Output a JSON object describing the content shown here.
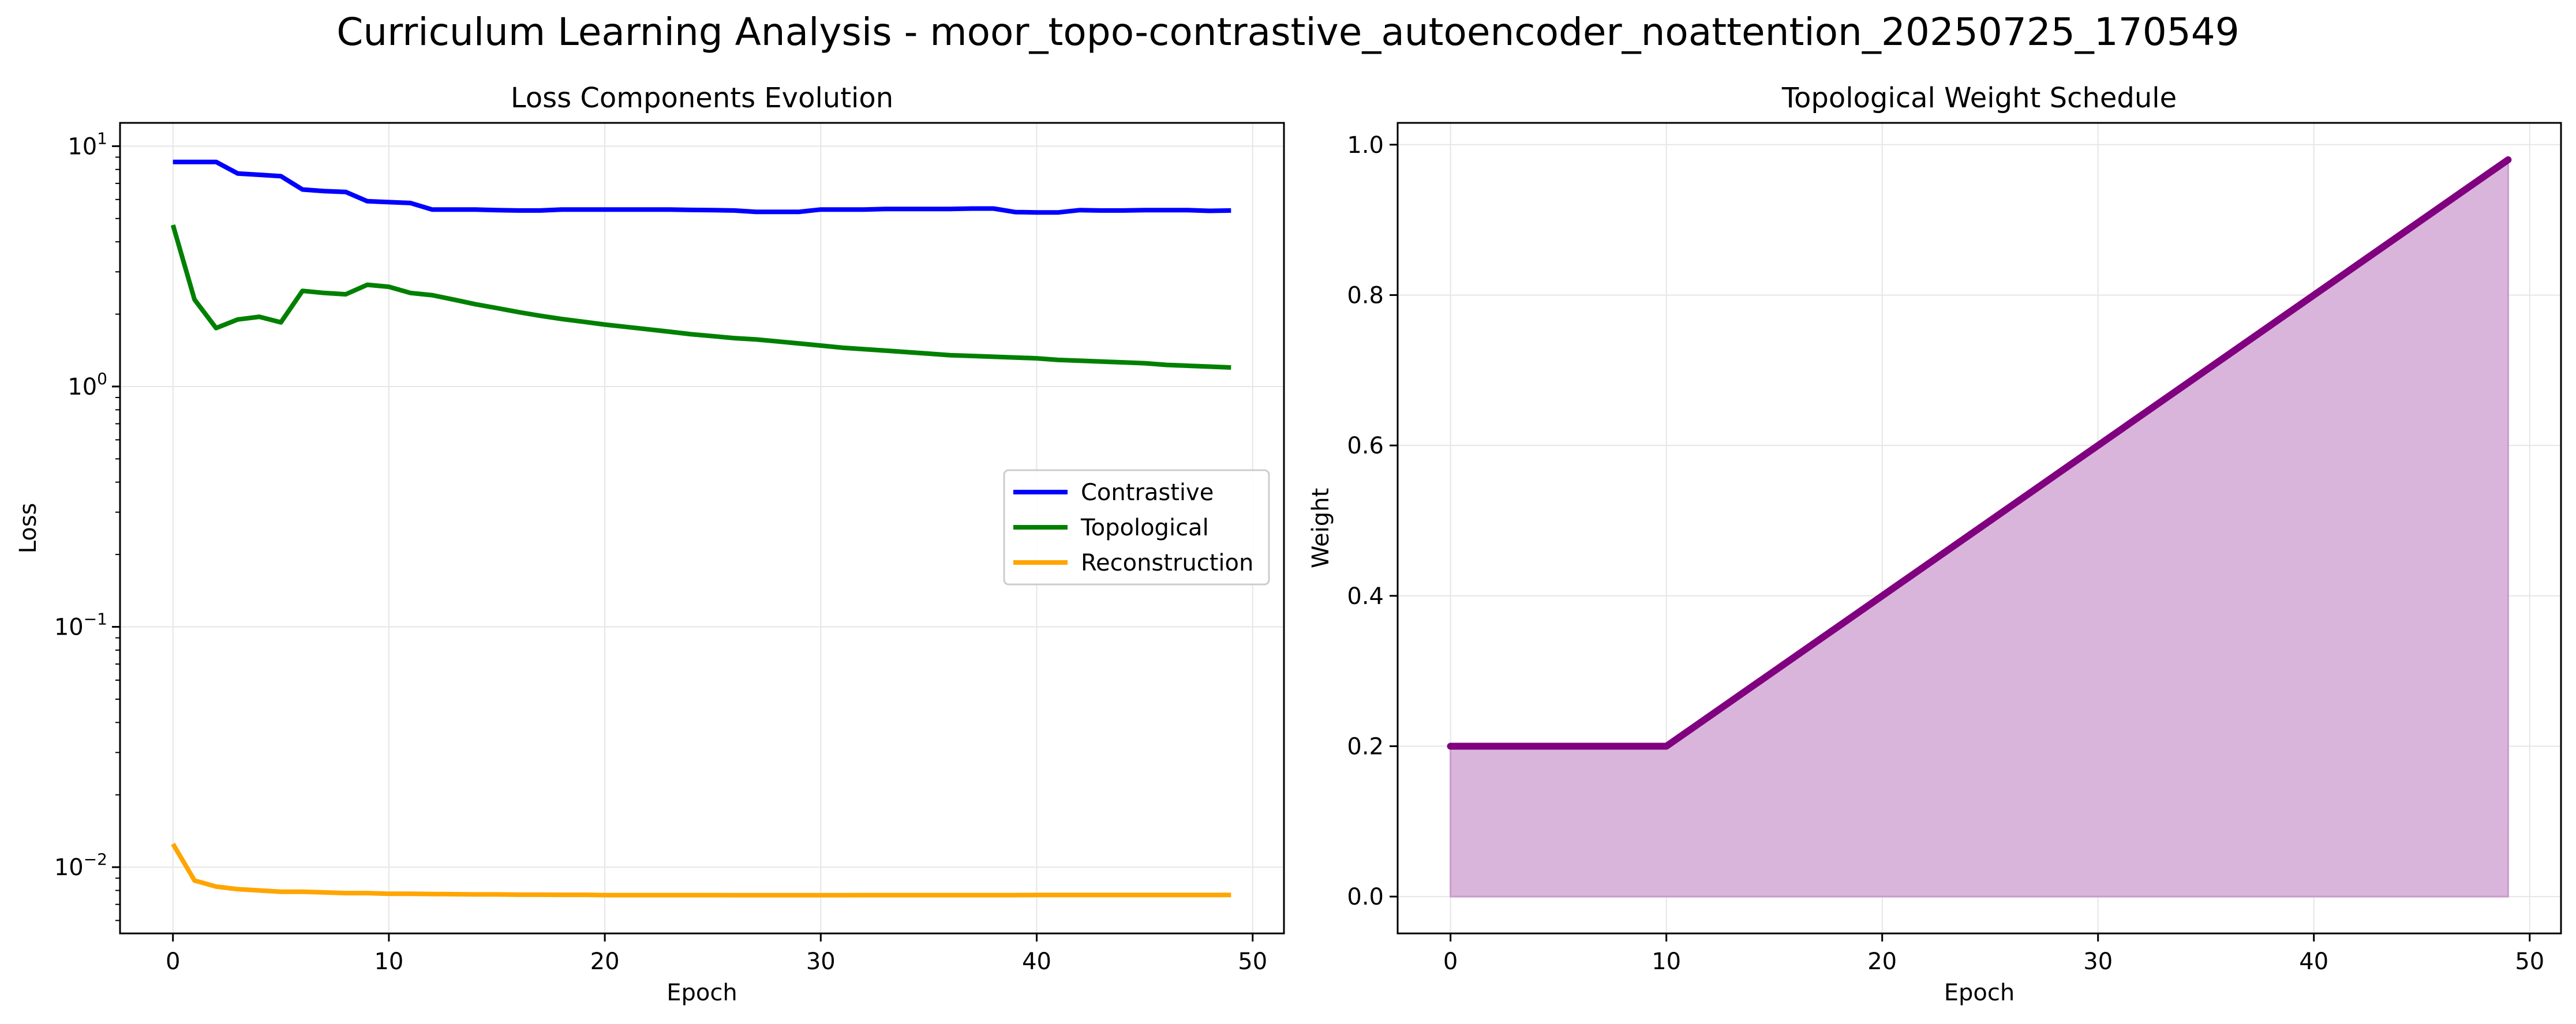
{
  "figure": {
    "title": "Curriculum Learning Analysis - moor_topo-contrastive_autoencoder_noattention_20250725_170549"
  },
  "chart_data": [
    {
      "type": "line",
      "title": "Loss Components Evolution",
      "xlabel": "Epoch",
      "ylabel": "Loss",
      "yscale": "log",
      "xlim": [
        -2.45,
        51.45
      ],
      "ylim": [
        0.0053,
        12.5
      ],
      "xticks": [
        0,
        10,
        20,
        30,
        40,
        50
      ],
      "xtick_labels": [
        "0",
        "10",
        "20",
        "30",
        "40",
        "50"
      ],
      "yticks": [
        10,
        1,
        0.1,
        0.01
      ],
      "ytick_labels": [
        {
          "base": "10",
          "exp": "1"
        },
        {
          "base": "10",
          "exp": "0"
        },
        {
          "base": "10",
          "exp": "−1"
        },
        {
          "base": "10",
          "exp": "−2"
        }
      ],
      "grid": true,
      "legend_position": "center-right",
      "x": [
        0,
        1,
        2,
        3,
        4,
        5,
        6,
        7,
        8,
        9,
        10,
        11,
        12,
        13,
        14,
        15,
        16,
        17,
        18,
        19,
        20,
        21,
        22,
        23,
        24,
        25,
        26,
        27,
        28,
        29,
        30,
        31,
        32,
        33,
        34,
        35,
        36,
        37,
        38,
        39,
        40,
        41,
        42,
        43,
        44,
        45,
        46,
        47,
        48,
        49
      ],
      "series": [
        {
          "name": "Contrastive",
          "color": "#0000ff",
          "values": [
            8.6,
            8.6,
            8.6,
            7.7,
            7.6,
            7.5,
            6.6,
            6.5,
            6.45,
            5.9,
            5.85,
            5.8,
            5.45,
            5.45,
            5.45,
            5.42,
            5.4,
            5.4,
            5.45,
            5.45,
            5.45,
            5.45,
            5.45,
            5.45,
            5.43,
            5.42,
            5.4,
            5.33,
            5.33,
            5.33,
            5.45,
            5.45,
            5.45,
            5.48,
            5.48,
            5.48,
            5.48,
            5.5,
            5.5,
            5.32,
            5.3,
            5.3,
            5.42,
            5.4,
            5.4,
            5.42,
            5.42,
            5.42,
            5.38,
            5.4
          ]
        },
        {
          "name": "Topological",
          "color": "#008000",
          "values": [
            4.7,
            2.3,
            1.75,
            1.9,
            1.95,
            1.85,
            2.5,
            2.45,
            2.42,
            2.65,
            2.6,
            2.45,
            2.4,
            2.3,
            2.2,
            2.12,
            2.04,
            1.97,
            1.91,
            1.86,
            1.81,
            1.77,
            1.73,
            1.69,
            1.65,
            1.62,
            1.59,
            1.57,
            1.54,
            1.51,
            1.48,
            1.45,
            1.43,
            1.41,
            1.39,
            1.37,
            1.35,
            1.34,
            1.33,
            1.32,
            1.31,
            1.29,
            1.28,
            1.27,
            1.26,
            1.25,
            1.23,
            1.22,
            1.21,
            1.2
          ]
        },
        {
          "name": "Reconstruction",
          "color": "#ffa500",
          "values": [
            0.0125,
            0.0088,
            0.0083,
            0.0081,
            0.008,
            0.0079,
            0.0079,
            0.00785,
            0.0078,
            0.0078,
            0.00775,
            0.00775,
            0.00773,
            0.00772,
            0.0077,
            0.0077,
            0.00768,
            0.00768,
            0.00767,
            0.00767,
            0.00765,
            0.00765,
            0.00765,
            0.00765,
            0.00765,
            0.00765,
            0.00764,
            0.00764,
            0.00764,
            0.00764,
            0.00764,
            0.00764,
            0.00765,
            0.00765,
            0.00765,
            0.00765,
            0.00765,
            0.00765,
            0.00765,
            0.00765,
            0.00766,
            0.00766,
            0.00766,
            0.00766,
            0.00766,
            0.00766,
            0.00766,
            0.00766,
            0.00766,
            0.00766
          ]
        }
      ]
    },
    {
      "type": "area",
      "title": "Topological Weight Schedule",
      "xlabel": "Epoch",
      "ylabel": "Weight",
      "xlim": [
        -2.45,
        51.45
      ],
      "ylim": [
        -0.049,
        1.029
      ],
      "xticks": [
        0,
        10,
        20,
        30,
        40,
        50
      ],
      "xtick_labels": [
        "0",
        "10",
        "20",
        "30",
        "40",
        "50"
      ],
      "yticks": [
        0.0,
        0.2,
        0.4,
        0.6,
        0.8,
        1.0
      ],
      "ytick_labels": [
        "0.0",
        "0.2",
        "0.4",
        "0.6",
        "0.8",
        "1.0"
      ],
      "grid": true,
      "x": [
        0,
        10,
        49
      ],
      "series": [
        {
          "line_color": "#800080",
          "fill_color": "#d8b1d9",
          "values": [
            0.2,
            0.2,
            0.98
          ]
        }
      ]
    }
  ]
}
